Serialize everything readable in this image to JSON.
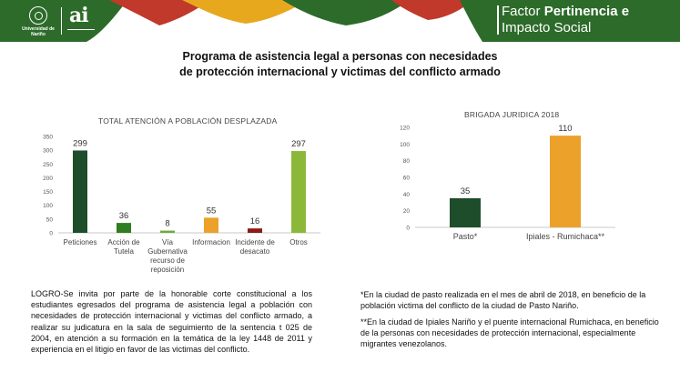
{
  "header": {
    "logo_udn_text": "Universidad de Nariño",
    "logo_ai": "ai",
    "factor_title_line1_prefix": "Factor ",
    "factor_title_line1_bold": "Pertinencia e",
    "factor_title_line2": "Impacto Social",
    "colors": {
      "green": "#2d6b2a",
      "orange": "#e8a81e",
      "red": "#c0392b"
    }
  },
  "page_title": {
    "line1": "Programa de asistencia legal a personas con necesidades",
    "line2": "de protección internacional y victimas del conflicto armado"
  },
  "chart_data": [
    {
      "type": "bar",
      "title": "TOTAL ATENCIÓN A POBLACIÓN DESPLAZADA",
      "categories": [
        [
          "Peticiones"
        ],
        [
          "Acción de",
          "Tutela"
        ],
        [
          "Vía",
          "Gubernativa",
          "recurso de",
          "reposición"
        ],
        [
          "Informacion"
        ],
        [
          "Incidente de",
          "desacato"
        ],
        [
          "Otros"
        ]
      ],
      "values": [
        299,
        36,
        8,
        55,
        16,
        297
      ],
      "colors": [
        "#1e4d2b",
        "#2e7d1f",
        "#6cae3a",
        "#eba12a",
        "#8b1a1a",
        "#8cb83a"
      ],
      "ylim": [
        0,
        350
      ],
      "yticks": [
        0,
        50,
        100,
        150,
        200,
        250,
        300,
        350
      ],
      "xlabel": "",
      "ylabel": "",
      "grid": false
    },
    {
      "type": "bar",
      "title": "BRIGADA JURIDICA 2018",
      "categories": [
        [
          "Pasto*"
        ],
        [
          "Ipiales - Rumichaca**"
        ]
      ],
      "values": [
        35,
        110
      ],
      "colors": [
        "#1e4d2b",
        "#eba12a"
      ],
      "ylim": [
        0,
        120
      ],
      "yticks": [
        0,
        20,
        40,
        60,
        80,
        100,
        120
      ],
      "xlabel": "",
      "ylabel": "",
      "grid": false
    }
  ],
  "logro_text": "LOGRO-Se invita por parte de la honorable corte constitucional a los estudiantes egresados del programa de asistencia legal a población con necesidades de protección internacional y victimas del conflicto armado, a realizar su judicatura en la sala de seguimiento de la sentencia t 025 de 2004, en atención a su formación en la temática de la ley 1448 de 2011 y experiencia en el litigio en favor de las victimas del conflicto.",
  "note1": "*En la ciudad de pasto realizada en el mes de abril de 2018, en beneficio de la población victima del conflicto de la ciudad de Pasto Nariño.",
  "note2": "**En la ciudad de Ipiales Nariño y el puente internacional Rumichaca, en beneficio de la personas con necesidades de protección internacional, especialmente migrantes venezolanos."
}
